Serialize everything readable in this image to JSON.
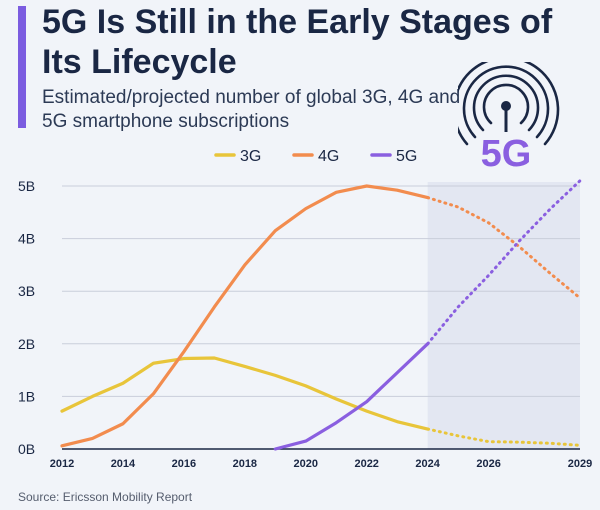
{
  "title": "5G Is Still in the Early Stages of Its Lifecycle",
  "subtitle": "Estimated/projected number of global 3G, 4G and 5G smartphone subscriptions",
  "badge_text": "5G",
  "source": "Source: Ericsson Mobility Report",
  "colors": {
    "accent": "#7b5ce0",
    "3G": "#e8c53a",
    "4G": "#f28c4e",
    "5G": "#8a5fe0",
    "projection_band": "#e3e7f2"
  },
  "chart_data": {
    "type": "line",
    "title": "5G Is Still in the Early Stages of Its Lifecycle",
    "xlabel": "",
    "ylabel": "",
    "xlim": [
      2012,
      2029
    ],
    "ylim": [
      0,
      5
    ],
    "x_ticks": [
      "2012",
      "2014",
      "2016",
      "2018",
      "2020",
      "2022",
      "2024",
      "2026",
      "2029"
    ],
    "y_ticks": [
      "0B",
      "1B",
      "2B",
      "3B",
      "4B",
      "5B"
    ],
    "projection_start": 2024,
    "legend_position": "top",
    "series": [
      {
        "name": "3G",
        "x": [
          2012,
          2013,
          2014,
          2015,
          2016,
          2017,
          2018,
          2019,
          2020,
          2021,
          2022,
          2023,
          2024,
          2025,
          2026,
          2027,
          2028,
          2029
        ],
        "values": [
          0.72,
          1.0,
          1.25,
          1.63,
          1.72,
          1.73,
          1.57,
          1.4,
          1.2,
          0.95,
          0.72,
          0.52,
          0.38,
          0.25,
          0.14,
          0.13,
          0.11,
          0.07
        ]
      },
      {
        "name": "4G",
        "x": [
          2012,
          2013,
          2014,
          2015,
          2016,
          2017,
          2018,
          2019,
          2020,
          2021,
          2022,
          2023,
          2024,
          2025,
          2026,
          2027,
          2028,
          2029
        ],
        "values": [
          0.06,
          0.2,
          0.48,
          1.05,
          1.85,
          2.7,
          3.5,
          4.15,
          4.57,
          4.88,
          5.0,
          4.92,
          4.78,
          4.6,
          4.3,
          3.85,
          3.35,
          2.87
        ]
      },
      {
        "name": "5G",
        "x": [
          2019,
          2020,
          2021,
          2022,
          2023,
          2024,
          2025,
          2026,
          2027,
          2028,
          2029
        ],
        "values": [
          0.0,
          0.15,
          0.5,
          0.9,
          1.45,
          2.0,
          2.7,
          3.3,
          3.95,
          4.55,
          5.1
        ]
      }
    ]
  }
}
